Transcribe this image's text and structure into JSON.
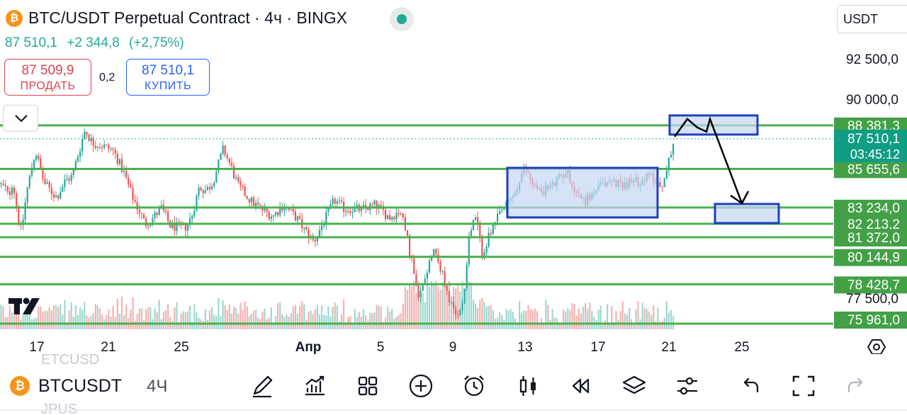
{
  "header": {
    "coin_badge": "₿",
    "title": "BTC/USDT Perpetual Contract · 4ч · BINGX",
    "price": "87 510,1",
    "change": "+2 344,8",
    "change_pct": "(+2,75%)",
    "sell_price": "87 509,9",
    "sell_label": "ПРОДАТЬ",
    "spread": "0,2",
    "buy_price": "87 510,1",
    "buy_label": "КУПИТЬ",
    "currency": "USDT",
    "status_color": "#22ab94"
  },
  "price_axis": {
    "labels": [
      "92 500,0",
      "90 000,0",
      "77 500,0"
    ]
  },
  "levels": [
    {
      "label": "88 381,3",
      "value": 88381.3
    },
    {
      "label": "85 655,6",
      "value": 85655.6
    },
    {
      "label": "83 234,0",
      "value": 83234.0
    },
    {
      "label": "82 213,2",
      "value": 82213.2
    },
    {
      "label": "81 372,0",
      "value": 81372.0
    },
    {
      "label": "80 144,9",
      "value": 80144.9
    },
    {
      "label": "78 428,7",
      "value": 78428.7
    },
    {
      "label": "75 961,0",
      "value": 75961.0
    }
  ],
  "current_price": {
    "label": "87 510,1",
    "countdown": "03:45:12",
    "value": 87510.1
  },
  "time_axis": [
    "17",
    "21",
    "25",
    "Апр",
    "5",
    "9",
    "13",
    "17",
    "21",
    "25"
  ],
  "colors": {
    "up": "#26a69a",
    "down": "#ef5350",
    "level_line": "#4caf50",
    "level_label_bg": "#43a047",
    "box_stroke": "#1f3fbf",
    "box_fill": "#c5d5f2",
    "current_label_bg": "#0f9d84"
  },
  "bottom_toolbar": {
    "ghost_top": "ETCUSD",
    "ghost_bottom": "JPUS",
    "symbol_badge": "₿",
    "symbol": "BTCUSDT",
    "timeframe": "4Ч",
    "tools": [
      "pencil-icon",
      "chart-growth-icon",
      "grid-icon",
      "plus-circle-icon",
      "alarm-icon",
      "candles-icon",
      "rewind-icon",
      "layers-icon",
      "sliders-icon",
      "undo-icon",
      "fullscreen-icon",
      "redo-icon"
    ]
  },
  "chart_data": {
    "type": "candlestick",
    "title": "BTC/USDT Perpetual Contract · 4ч · BINGX",
    "x_ticks": [
      "17",
      "21",
      "25",
      "Апр",
      "5",
      "9",
      "13",
      "17",
      "21",
      "25"
    ],
    "ylim": [
      75200,
      93900
    ],
    "anchors": [
      [
        0,
        84700
      ],
      [
        8,
        84400
      ],
      [
        12,
        83900
      ],
      [
        18,
        84900
      ],
      [
        26,
        82500
      ],
      [
        30,
        81700
      ],
      [
        38,
        84300
      ],
      [
        50,
        86800
      ],
      [
        62,
        84800
      ],
      [
        75,
        84100
      ],
      [
        80,
        83900
      ],
      [
        92,
        84900
      ],
      [
        102,
        85200
      ],
      [
        108,
        86200
      ],
      [
        120,
        88100
      ],
      [
        130,
        87300
      ],
      [
        145,
        87100
      ],
      [
        160,
        86800
      ],
      [
        175,
        85400
      ],
      [
        186,
        84000
      ],
      [
        205,
        82200
      ],
      [
        216,
        82600
      ],
      [
        228,
        83200
      ],
      [
        240,
        82100
      ],
      [
        260,
        81900
      ],
      [
        270,
        82600
      ],
      [
        281,
        84500
      ],
      [
        291,
        84300
      ],
      [
        300,
        84800
      ],
      [
        315,
        86900
      ],
      [
        326,
        85800
      ],
      [
        336,
        84600
      ],
      [
        355,
        83600
      ],
      [
        370,
        83100
      ],
      [
        385,
        82700
      ],
      [
        400,
        83400
      ],
      [
        420,
        82500
      ],
      [
        430,
        81800
      ],
      [
        443,
        81100
      ],
      [
        472,
        83700
      ],
      [
        484,
        83200
      ],
      [
        510,
        83100
      ],
      [
        530,
        83400
      ],
      [
        550,
        82600
      ],
      [
        565,
        83100
      ],
      [
        575,
        81200
      ],
      [
        583,
        79500
      ],
      [
        590,
        77300
      ],
      [
        600,
        79000
      ],
      [
        612,
        80800
      ],
      [
        624,
        79100
      ],
      [
        632,
        77700
      ],
      [
        645,
        76200
      ],
      [
        655,
        77900
      ],
      [
        662,
        81700
      ],
      [
        672,
        82600
      ],
      [
        680,
        80300
      ],
      [
        690,
        81400
      ],
      [
        705,
        82800
      ],
      [
        716,
        83400
      ],
      [
        730,
        84400
      ],
      [
        741,
        85700
      ],
      [
        760,
        84200
      ],
      [
        780,
        84600
      ],
      [
        800,
        85600
      ],
      [
        810,
        84400
      ],
      [
        825,
        83600
      ],
      [
        840,
        84300
      ],
      [
        860,
        84900
      ],
      [
        880,
        84700
      ],
      [
        900,
        84900
      ],
      [
        920,
        85200
      ],
      [
        932,
        84600
      ],
      [
        940,
        85200
      ],
      [
        946,
        86700
      ],
      [
        952,
        87600
      ],
      [
        955,
        87510
      ]
    ],
    "zones": [
      {
        "from": "12 Apr",
        "to": "20 Apr",
        "low": 83234.0,
        "high": 85655.6
      },
      {
        "from": "21 Apr",
        "to": "25 Apr",
        "low": 88200,
        "high": 88800
      },
      {
        "from": "23 Apr",
        "to": "26 Apr",
        "low": 82600,
        "high": 83234
      }
    ],
    "projection": "up to 88 381,3 then down to 83 234,0"
  }
}
